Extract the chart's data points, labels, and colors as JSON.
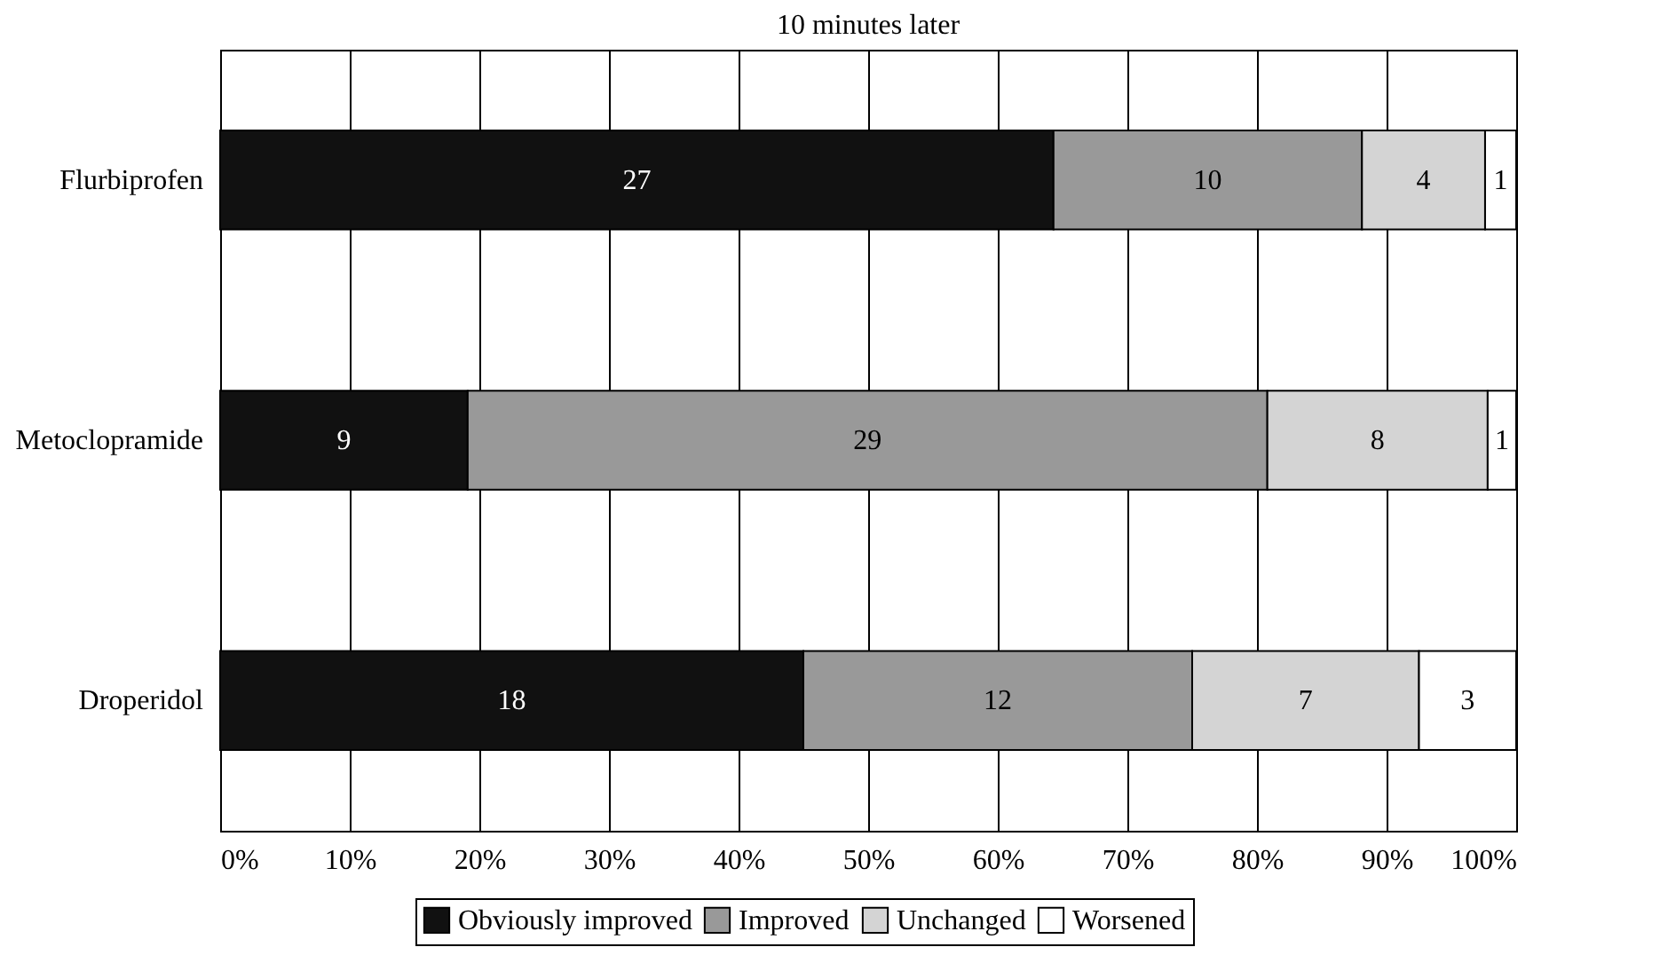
{
  "chart_data": {
    "type": "bar",
    "orientation": "horizontal",
    "stacked": true,
    "title": "10 minutes later",
    "categories": [
      "Flurbiprofen",
      "Metoclopramide",
      "Droperidol"
    ],
    "series": [
      {
        "name": "Obviously improved",
        "color": "#111111",
        "values": [
          64.3,
          19.1,
          45.0
        ]
      },
      {
        "name": "Improved",
        "color": "#999999",
        "values": [
          23.8,
          61.7,
          30.0
        ]
      },
      {
        "name": "Unchanged",
        "color": "#d4d4d4",
        "values": [
          9.5,
          17.0,
          17.5
        ]
      },
      {
        "name": "Worsened",
        "color": "#ffffff",
        "values": [
          2.4,
          2.2,
          7.5
        ]
      }
    ],
    "annotations": [
      "27",
      "10",
      "4",
      "1",
      "9",
      "29",
      "8",
      "1",
      "18",
      "12",
      "7",
      "3"
    ],
    "xlim": [
      0,
      100
    ],
    "xticks": [
      {
        "value": 0,
        "label": "0%"
      },
      {
        "value": 10,
        "label": "10%"
      },
      {
        "value": 20,
        "label": "20%"
      },
      {
        "value": 30,
        "label": "30%"
      },
      {
        "value": 40,
        "label": "40%"
      },
      {
        "value": 50,
        "label": "50%"
      },
      {
        "value": 60,
        "label": "60%"
      },
      {
        "value": 70,
        "label": "70%"
      },
      {
        "value": 80,
        "label": "80%"
      },
      {
        "value": 90,
        "label": "90%"
      },
      {
        "value": 100,
        "label": "100%"
      }
    ],
    "grid": "x",
    "legend": "bottom"
  }
}
